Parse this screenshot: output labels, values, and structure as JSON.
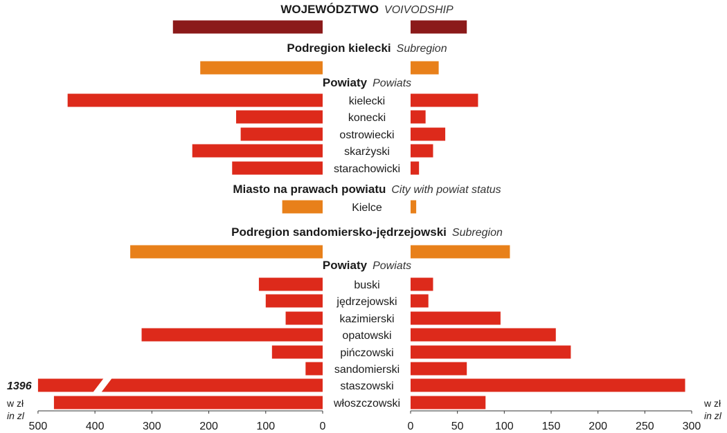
{
  "chart_data": {
    "type": "bar",
    "orientation": "horizontal",
    "layout": "butterfly",
    "left_axis": {
      "ticks": [
        "500",
        "400",
        "300",
        "200",
        "100",
        "0"
      ],
      "range": [
        0,
        500
      ],
      "unit": "w zł",
      "unit_en": "in zl"
    },
    "right_axis": {
      "ticks": [
        "0",
        "50",
        "100",
        "150",
        "200",
        "250",
        "300"
      ],
      "range": [
        0,
        300
      ],
      "unit": "w zł",
      "unit_en": "in zl"
    },
    "break_value_label": "1396",
    "colors": {
      "voivodship": "#8b1a1a",
      "subregion": "#e8801a",
      "powiat": "#dd2a1b"
    },
    "sections": [
      {
        "title": "WOJEWÓDZTWO",
        "title_en": "VOIVODSHIP",
        "kind": "voivodship",
        "rows": [
          {
            "label": "",
            "left": 263,
            "right": 60
          }
        ]
      },
      {
        "title": "Podregion kielecki",
        "title_en": "Subregion",
        "kind": "subregion",
        "rows": [
          {
            "label": "",
            "left": 215,
            "right": 30
          }
        ]
      },
      {
        "title": "Powiaty",
        "title_en": "Powiats",
        "kind": "powiat",
        "rows": [
          {
            "label": "kielecki",
            "left": 448,
            "right": 72
          },
          {
            "label": "konecki",
            "left": 152,
            "right": 16
          },
          {
            "label": "ostrowiecki",
            "left": 144,
            "right": 37
          },
          {
            "label": "skarżyski",
            "left": 229,
            "right": 24
          },
          {
            "label": "starachowicki",
            "left": 159,
            "right": 9
          }
        ]
      },
      {
        "title": "Miasto na prawach powiatu",
        "title_en": "City with powiat status",
        "kind": "subregion",
        "rows": [
          {
            "label": "Kielce",
            "left": 71,
            "right": 6
          }
        ]
      },
      {
        "title": "Podregion sandomiersko-jędrzejowski",
        "title_en": "Subregion",
        "kind": "subregion",
        "rows": [
          {
            "label": "",
            "left": 338,
            "right": 106
          }
        ]
      },
      {
        "title": "Powiaty",
        "title_en": "Powiats",
        "kind": "powiat",
        "rows": [
          {
            "label": "buski",
            "left": 112,
            "right": 24
          },
          {
            "label": "jędrzejowski",
            "left": 100,
            "right": 19
          },
          {
            "label": "kazimierski",
            "left": 65,
            "right": 96
          },
          {
            "label": "opatowski",
            "left": 318,
            "right": 155
          },
          {
            "label": "pińczowski",
            "left": 89,
            "right": 171
          },
          {
            "label": "sandomierski",
            "left": 30,
            "right": 60
          },
          {
            "label": "staszowski",
            "left": 1396,
            "right": 293
          },
          {
            "label": "włoszczowski",
            "left": 472,
            "right": 80
          }
        ]
      }
    ]
  }
}
